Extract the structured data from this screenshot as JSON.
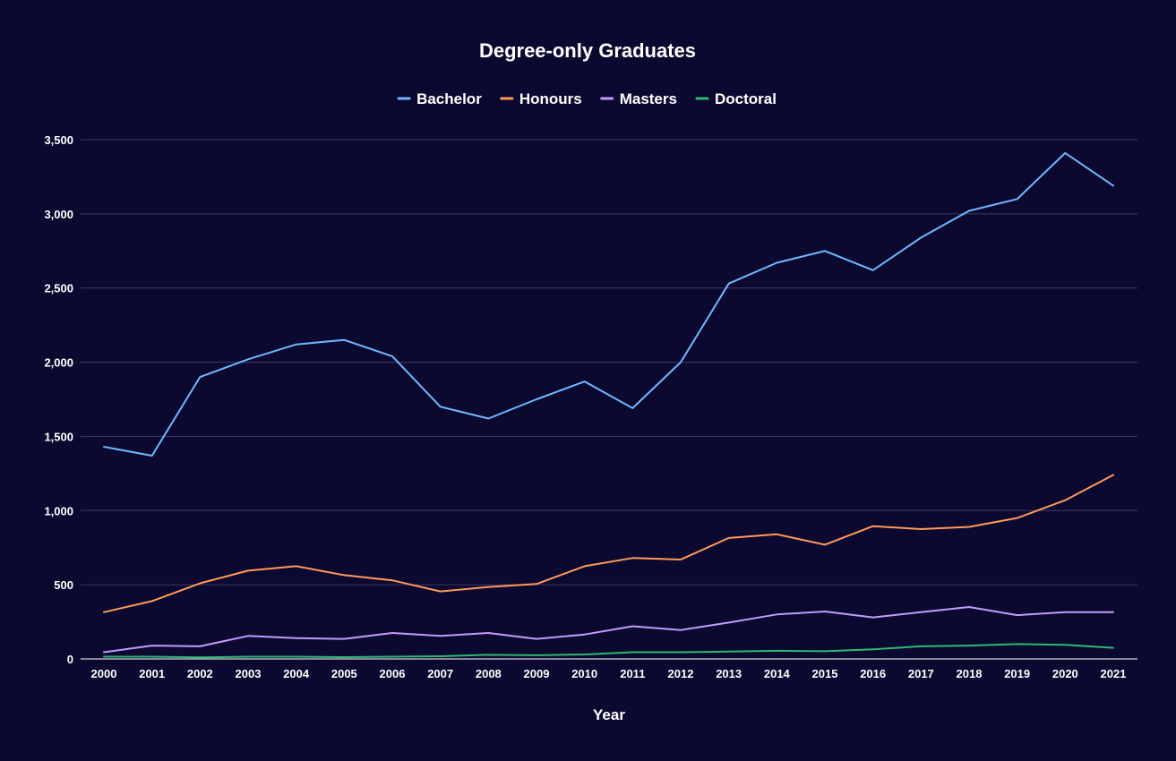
{
  "chart_data": {
    "type": "line",
    "title": "Degree-only Graduates",
    "xlabel": "Year",
    "ylabel": "",
    "ylim": [
      0,
      3500
    ],
    "yticks": [
      0,
      500,
      1000,
      1500,
      2000,
      2500,
      3000,
      3500
    ],
    "ytick_labels": [
      "0",
      "500",
      "1,000",
      "1,500",
      "2,000",
      "2,500",
      "3,000",
      "3,500"
    ],
    "grid": true,
    "legend_position": "top",
    "categories": [
      "2000",
      "2001",
      "2002",
      "2003",
      "2004",
      "2005",
      "2006",
      "2007",
      "2008",
      "2009",
      "2010",
      "2011",
      "2012",
      "2013",
      "2014",
      "2015",
      "2016",
      "2017",
      "2018",
      "2019",
      "2020",
      "2021"
    ],
    "series": [
      {
        "name": "Bachelor",
        "color": "#6fb8ff",
        "values": [
          1430,
          1370,
          1900,
          2020,
          2120,
          2150,
          2040,
          1700,
          1620,
          1750,
          1870,
          1690,
          2000,
          2530,
          2670,
          2750,
          2620,
          2840,
          3020,
          3100,
          3410,
          3190
        ]
      },
      {
        "name": "Honours",
        "color": "#ff9a5a",
        "values": [
          315,
          390,
          510,
          595,
          625,
          565,
          530,
          455,
          485,
          505,
          625,
          680,
          670,
          815,
          840,
          770,
          895,
          875,
          890,
          950,
          1070,
          1240
        ]
      },
      {
        "name": "Masters",
        "color": "#c39bff",
        "values": [
          45,
          90,
          85,
          155,
          140,
          135,
          175,
          155,
          175,
          135,
          165,
          220,
          195,
          245,
          300,
          320,
          280,
          315,
          350,
          295,
          315,
          315
        ]
      },
      {
        "name": "Doctoral",
        "color": "#2eb872",
        "values": [
          15,
          15,
          10,
          15,
          15,
          12,
          15,
          18,
          28,
          25,
          30,
          45,
          45,
          50,
          55,
          52,
          65,
          85,
          90,
          100,
          95,
          75
        ]
      }
    ]
  }
}
